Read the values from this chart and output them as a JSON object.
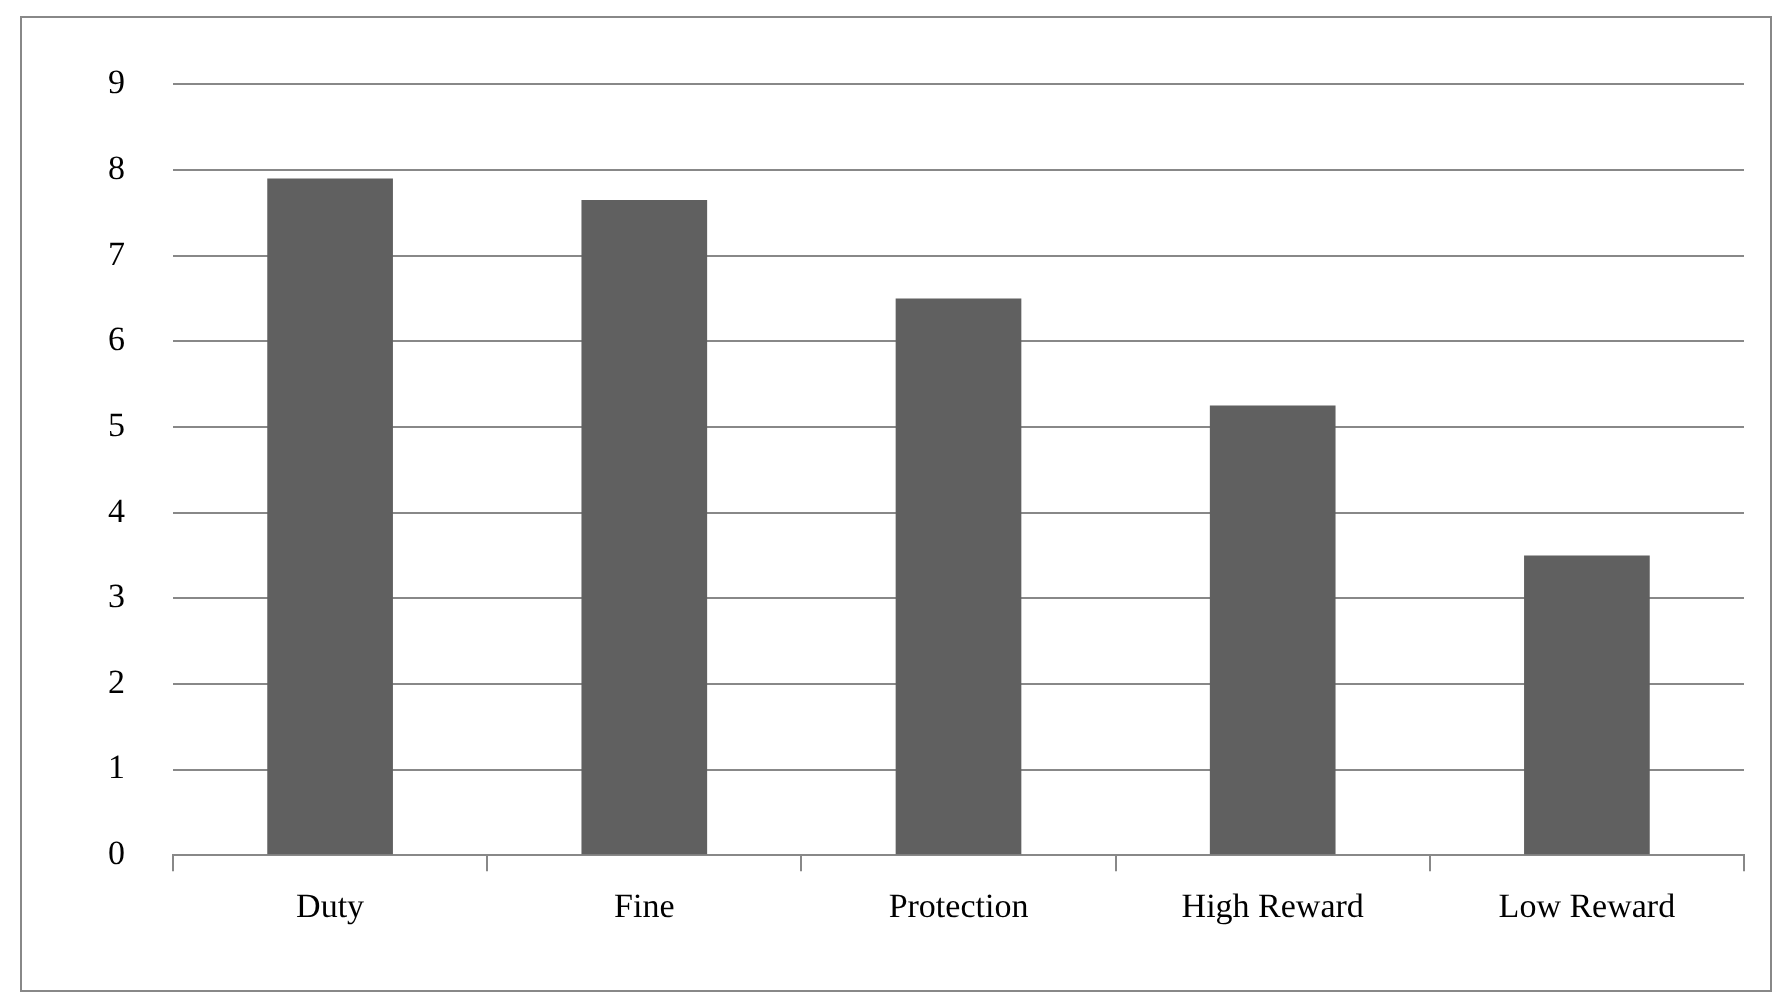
{
  "chart_data": {
    "type": "bar",
    "categories": [
      "Duty",
      "Fine",
      "Protection",
      "High Reward",
      "Low Reward"
    ],
    "values": [
      7.9,
      7.65,
      6.5,
      5.25,
      3.5
    ],
    "color": "#606060",
    "ylim": [
      0,
      9
    ],
    "yticks": [
      0,
      1,
      2,
      3,
      4,
      5,
      6,
      7,
      8,
      9
    ],
    "grid": "y",
    "legend": false
  }
}
